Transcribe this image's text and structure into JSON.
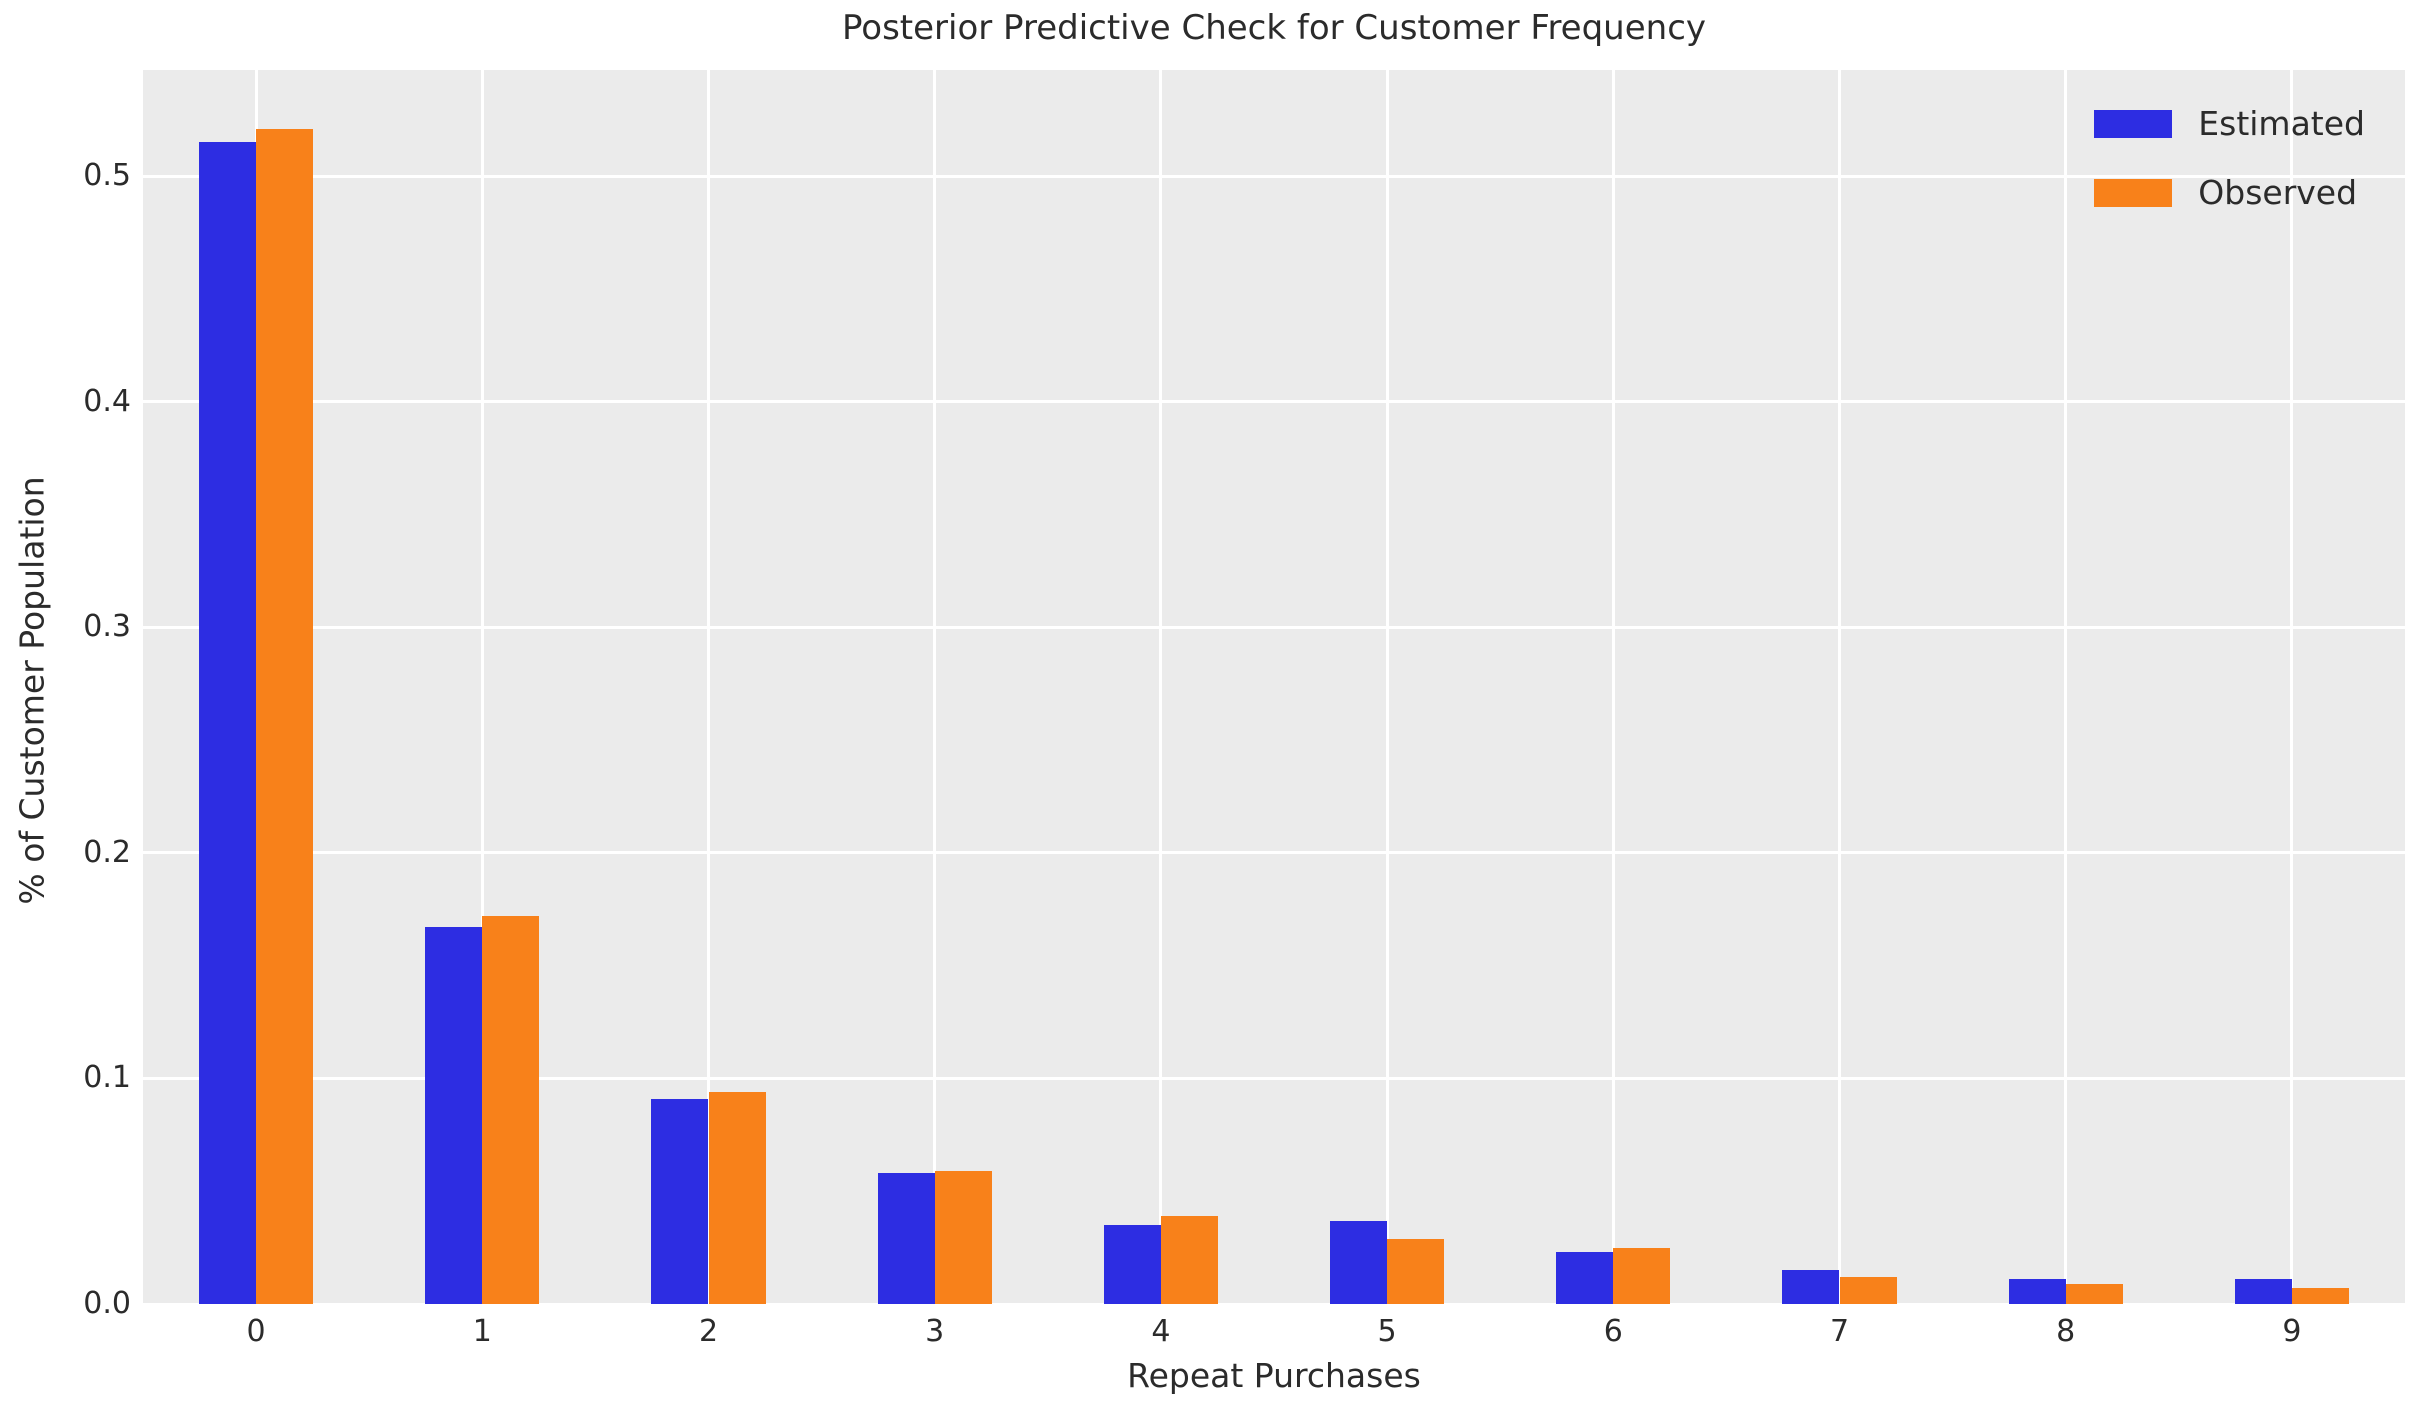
{
  "chart_data": {
    "type": "bar",
    "title": "Posterior Predictive Check for Customer Frequency",
    "xlabel": "Repeat Purchases",
    "ylabel": "% of Customer Population",
    "categories": [
      "0",
      "1",
      "2",
      "3",
      "4",
      "5",
      "6",
      "7",
      "8",
      "9"
    ],
    "series": [
      {
        "name": "Estimated",
        "color": "#2d2de2",
        "values": [
          0.515,
          0.167,
          0.091,
          0.058,
          0.035,
          0.037,
          0.023,
          0.015,
          0.011,
          0.011
        ]
      },
      {
        "name": "Observed",
        "color": "#f8811a",
        "values": [
          0.521,
          0.172,
          0.094,
          0.059,
          0.039,
          0.029,
          0.025,
          0.012,
          0.009,
          0.007
        ]
      }
    ],
    "ylim": [
      0,
      0.547
    ],
    "yticks": [
      0.0,
      0.1,
      0.2,
      0.3,
      0.4,
      0.5
    ],
    "ytick_labels": [
      "0.0",
      "0.1",
      "0.2",
      "0.3",
      "0.4",
      "0.5"
    ],
    "legend_position": "upper right",
    "grid": true,
    "colors": {
      "plot_background": "#ebebeb",
      "grid_color": "#ffffff",
      "text_color": "#2b2b2b",
      "figure_background": "#ffffff"
    }
  }
}
